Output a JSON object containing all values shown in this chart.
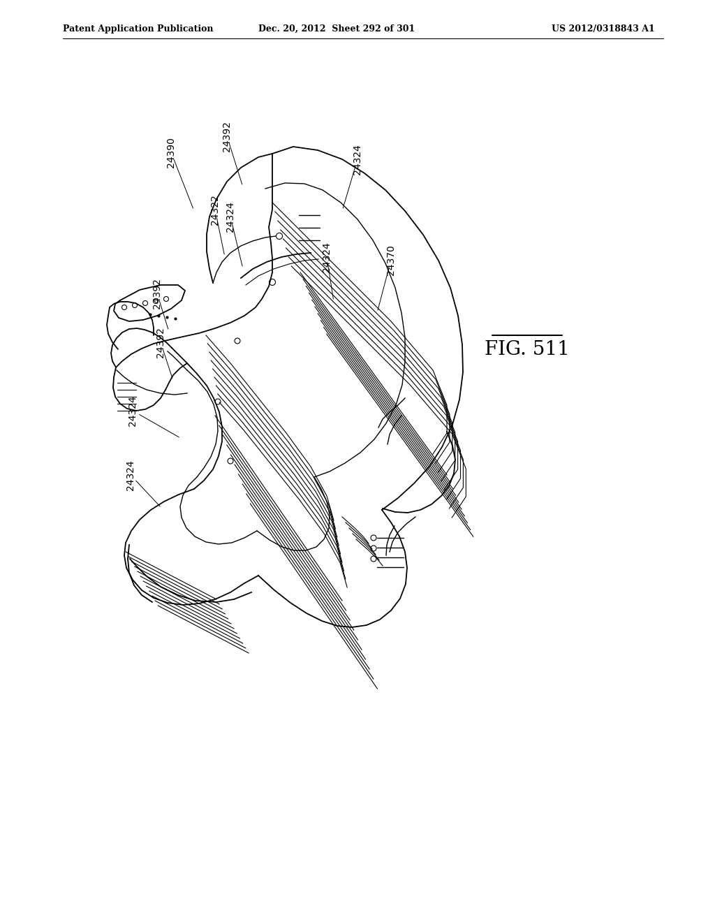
{
  "header_left": "Patent Application Publication",
  "header_mid": "Dec. 20, 2012  Sheet 292 of 301",
  "header_right": "US 2012/0318843 A1",
  "figure_label": "FIG. 511",
  "background_color": "#ffffff",
  "line_color": "#000000",
  "lw_main": 1.3,
  "lw_thin": 0.8,
  "lw_med": 1.0,
  "label_fontsize": 10,
  "fig_label_fontsize": 20,
  "header_fontsize": 9
}
